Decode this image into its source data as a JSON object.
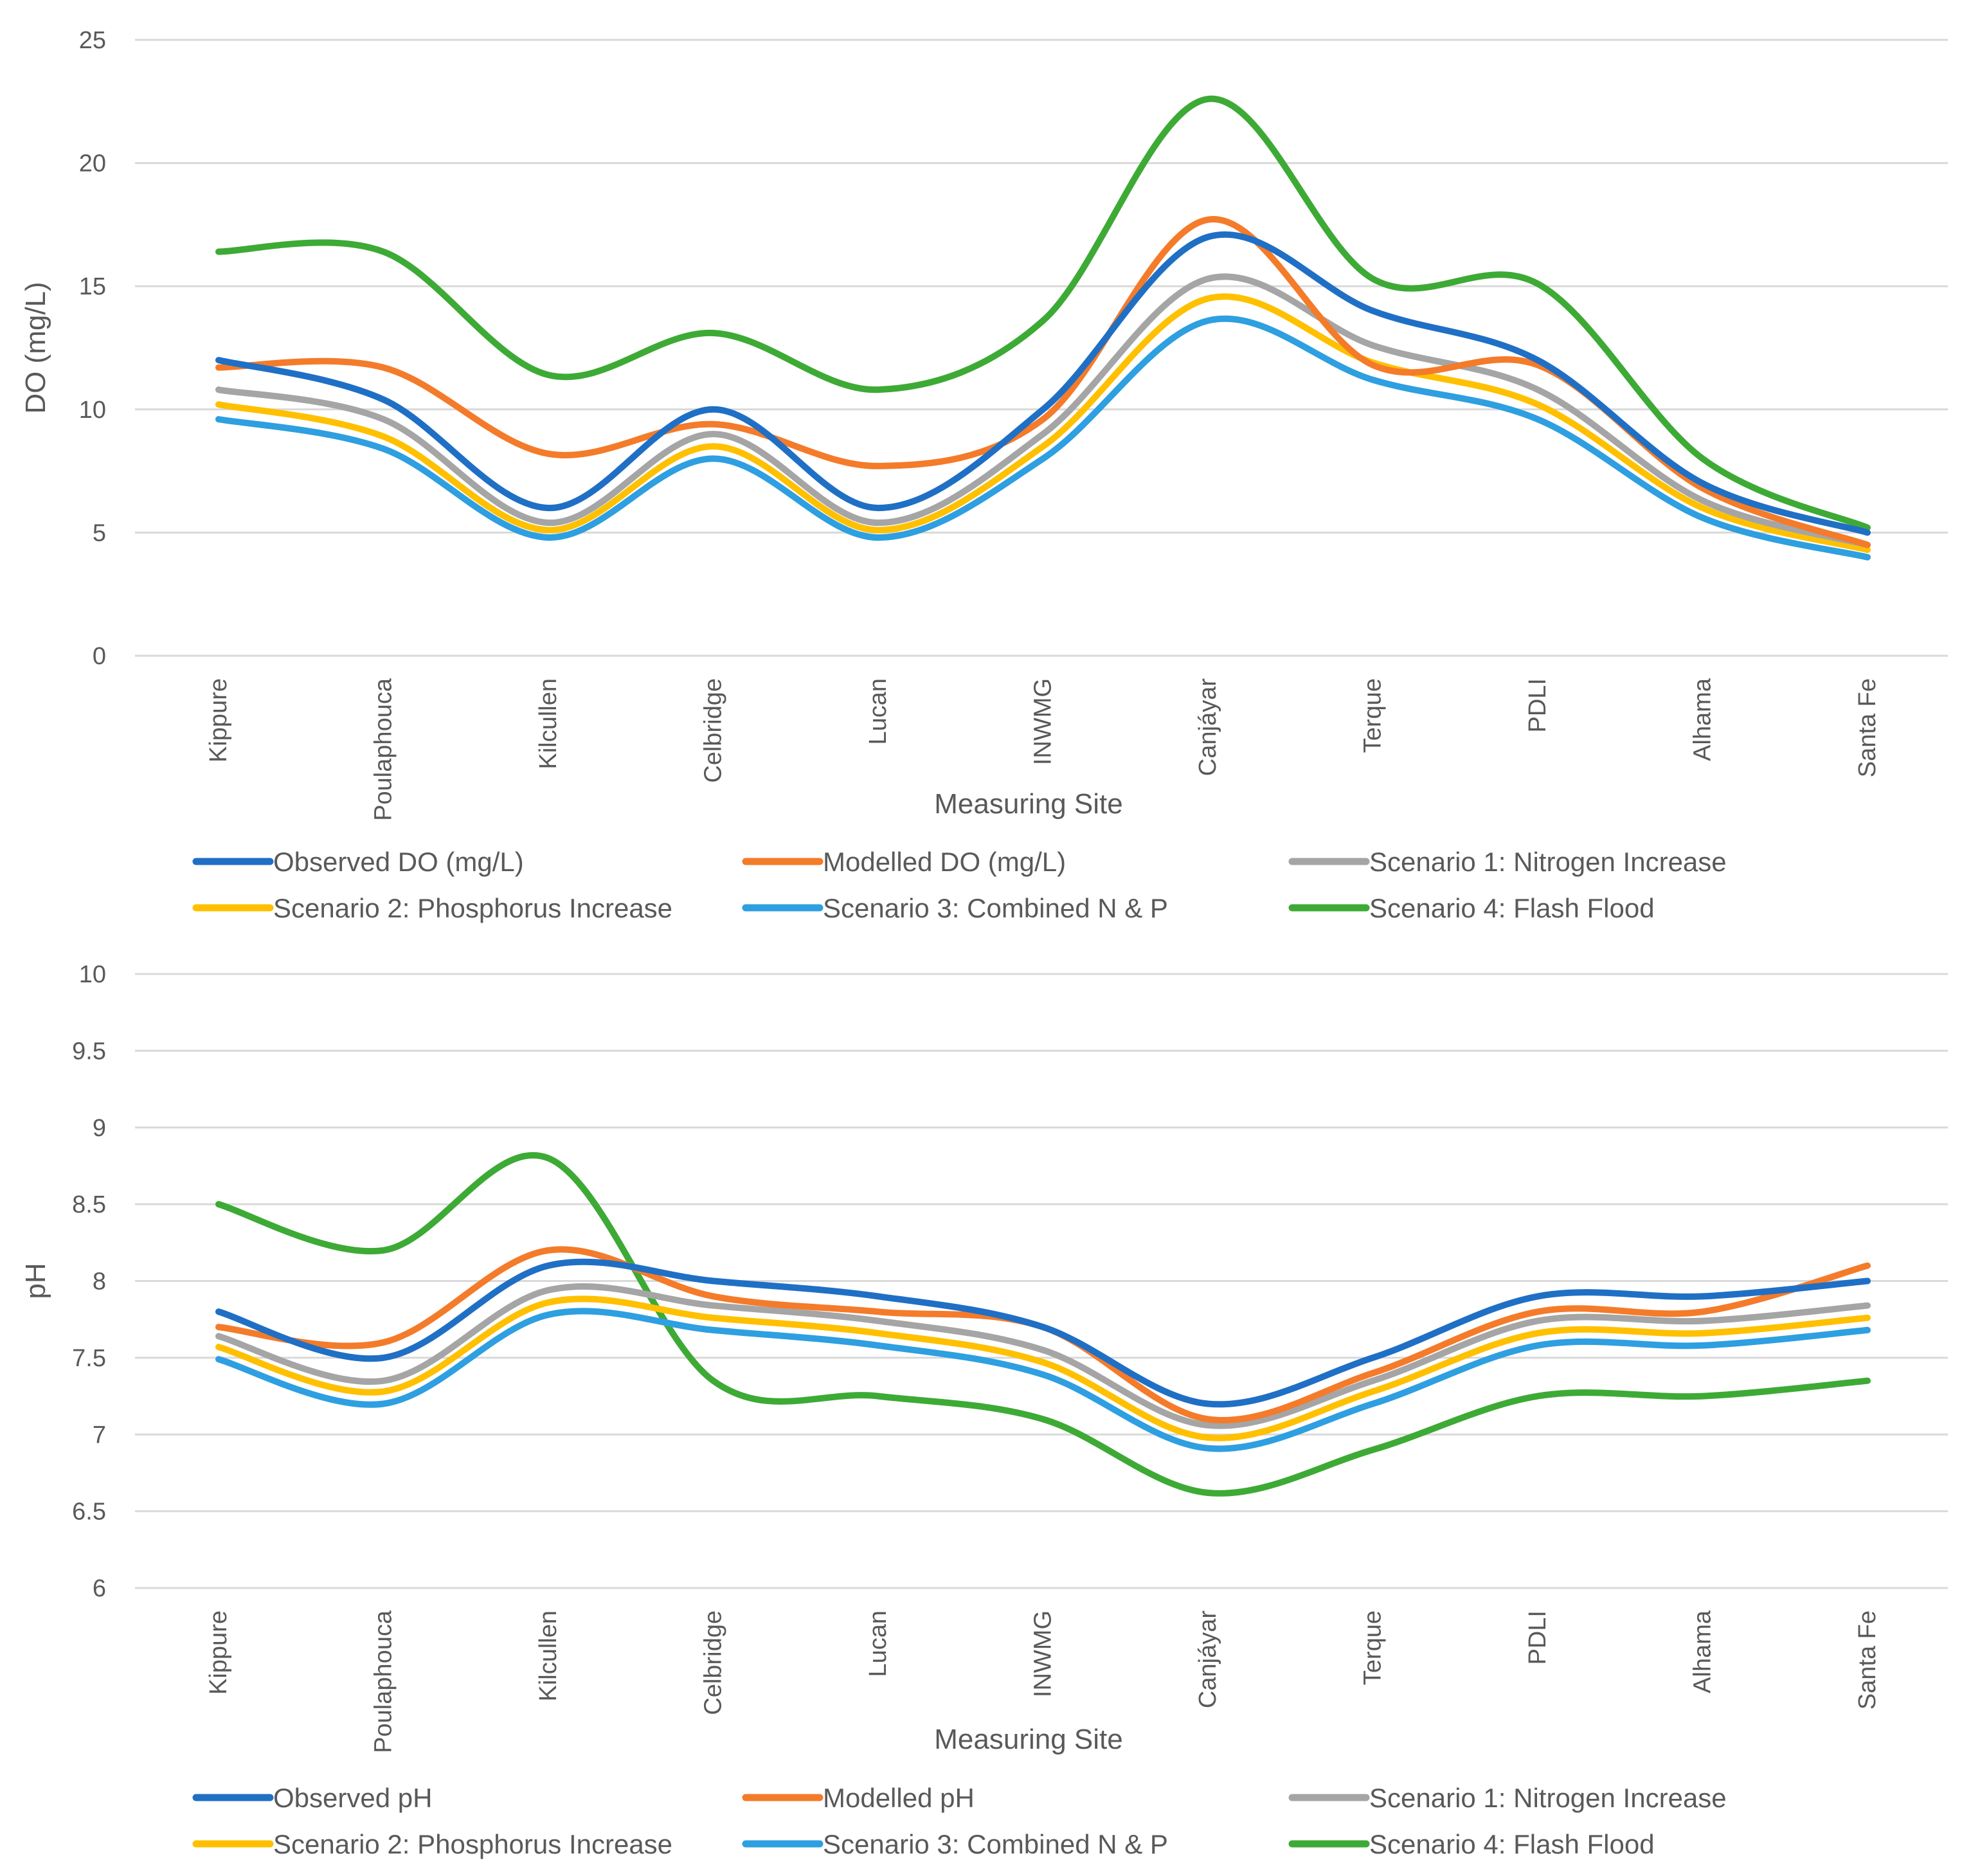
{
  "chart_data": [
    {
      "type": "line",
      "title": "",
      "xlabel": "Measuring Site",
      "ylabel": "DO (mg/L)",
      "ylim": [
        0,
        25
      ],
      "yticks": [
        "0",
        "5",
        "10",
        "15",
        "20",
        "25"
      ],
      "ytick_values": [
        0,
        5,
        10,
        15,
        20,
        25
      ],
      "grid": true,
      "legend_position": "bottom",
      "categories": [
        "Kippure",
        "Poulaphouca",
        "Kilcullen",
        "Celbridge",
        "Lucan",
        "INWMG",
        "Canjáyar",
        "Terque",
        "PDLI",
        "Alhama",
        "Santa Fe"
      ],
      "series": [
        {
          "name": "Observed DO (mg/L)",
          "color": "#1f6fc5",
          "values": [
            12.0,
            10.4,
            6.0,
            10.0,
            6.0,
            10.0,
            17.0,
            14.0,
            12.0,
            7.0,
            5.0
          ]
        },
        {
          "name": "Modelled DO (mg/L)",
          "color": "#f47b2a",
          "values": [
            11.7,
            11.7,
            8.2,
            9.4,
            7.7,
            9.6,
            17.7,
            11.8,
            11.8,
            6.8,
            4.5
          ]
        },
        {
          "name": "Scenario 1: Nitrogen Increase",
          "color": "#a5a5a5",
          "values": [
            10.8,
            9.6,
            5.4,
            9.0,
            5.4,
            9.0,
            15.3,
            12.6,
            10.8,
            6.3,
            4.5
          ]
        },
        {
          "name": "Scenario 2: Phosphorus Increase",
          "color": "#ffc000",
          "values": [
            10.2,
            8.9,
            5.1,
            8.5,
            5.1,
            8.5,
            14.5,
            11.9,
            10.2,
            6.0,
            4.3
          ]
        },
        {
          "name": "Scenario 3: Combined N & P",
          "color": "#2e9fe0",
          "values": [
            9.6,
            8.4,
            4.8,
            8.0,
            4.8,
            8.0,
            13.6,
            11.2,
            9.6,
            5.6,
            4.0
          ]
        },
        {
          "name": "Scenario 4: Flash Flood",
          "color": "#3daa35",
          "values": [
            16.4,
            16.4,
            11.4,
            13.1,
            10.8,
            13.6,
            22.6,
            15.3,
            15.1,
            8.0,
            5.2
          ]
        }
      ]
    },
    {
      "type": "line",
      "title": "",
      "xlabel": "Measuring Site",
      "ylabel": "pH",
      "ylim": [
        6,
        10
      ],
      "yticks": [
        "6",
        "6.5",
        "7",
        "7.5",
        "8",
        "8.5",
        "9",
        "9.5",
        "10"
      ],
      "ytick_values": [
        6,
        6.5,
        7,
        7.5,
        8,
        8.5,
        9,
        9.5,
        10
      ],
      "grid": true,
      "legend_position": "bottom",
      "categories": [
        "Kippure",
        "Poulaphouca",
        "Kilcullen",
        "Celbridge",
        "Lucan",
        "INWMG",
        "Canjáyar",
        "Terque",
        "PDLI",
        "Alhama",
        "Santa Fe"
      ],
      "series": [
        {
          "name": "Observed pH",
          "color": "#1f6fc5",
          "values": [
            7.8,
            7.5,
            8.1,
            8.0,
            7.9,
            7.7,
            7.2,
            7.5,
            7.9,
            7.9,
            8.0
          ]
        },
        {
          "name": "Modelled pH",
          "color": "#f47b2a",
          "values": [
            7.7,
            7.6,
            8.2,
            7.9,
            7.8,
            7.7,
            7.1,
            7.4,
            7.8,
            7.8,
            8.1
          ]
        },
        {
          "name": "Scenario 1: Nitrogen Increase",
          "color": "#a5a5a5",
          "values": [
            7.64,
            7.35,
            7.94,
            7.84,
            7.74,
            7.55,
            7.06,
            7.35,
            7.74,
            7.74,
            7.84
          ]
        },
        {
          "name": "Scenario 2: Phosphorus Increase",
          "color": "#ffc000",
          "values": [
            7.57,
            7.28,
            7.86,
            7.76,
            7.66,
            7.47,
            6.98,
            7.28,
            7.66,
            7.66,
            7.76
          ]
        },
        {
          "name": "Scenario 3: Combined N & P",
          "color": "#2e9fe0",
          "values": [
            7.49,
            7.2,
            7.78,
            7.68,
            7.58,
            7.39,
            6.91,
            7.2,
            7.58,
            7.58,
            7.68
          ]
        },
        {
          "name": "Scenario 4: Flash Flood",
          "color": "#3daa35",
          "values": [
            8.5,
            8.2,
            8.8,
            7.35,
            7.25,
            7.1,
            6.62,
            6.9,
            7.25,
            7.25,
            7.35
          ]
        }
      ]
    }
  ]
}
